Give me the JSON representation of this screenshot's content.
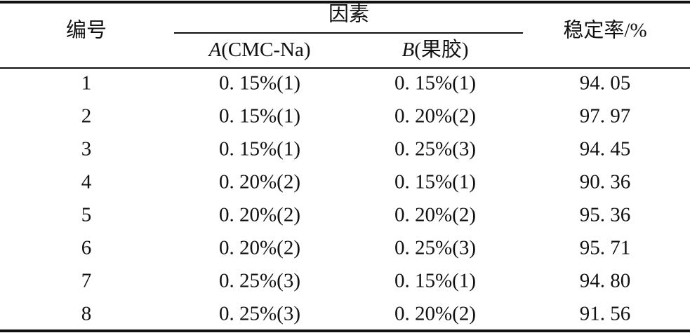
{
  "header": {
    "id": "编号",
    "factors": "因素",
    "sub": [
      {
        "symbol": "A",
        "name": "(CMC-Na)"
      },
      {
        "symbol": "B",
        "name": "(果胶)"
      }
    ],
    "rate": "稳定率/%"
  },
  "table": {
    "rows": [
      [
        "1",
        "0. 15%(1)",
        "0. 15%(1)",
        "94. 05"
      ],
      [
        "2",
        "0. 15%(1)",
        "0. 20%(2)",
        "97. 97"
      ],
      [
        "3",
        "0. 15%(1)",
        "0. 25%(3)",
        "94. 45"
      ],
      [
        "4",
        "0. 20%(2)",
        "0. 15%(1)",
        "90. 36"
      ],
      [
        "5",
        "0. 20%(2)",
        "0. 20%(2)",
        "95. 36"
      ],
      [
        "6",
        "0. 20%(2)",
        "0. 25%(3)",
        "95. 71"
      ],
      [
        "7",
        "0. 25%(3)",
        "0. 15%(1)",
        "94. 80"
      ],
      [
        "8",
        "0. 25%(3)",
        "0. 20%(2)",
        "91. 56"
      ]
    ]
  }
}
